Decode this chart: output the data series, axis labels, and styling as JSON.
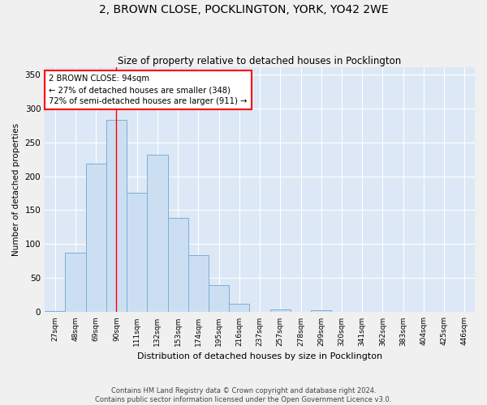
{
  "title": "2, BROWN CLOSE, POCKLINGTON, YORK, YO42 2WE",
  "subtitle": "Size of property relative to detached houses in Pocklington",
  "xlabel": "Distribution of detached houses by size in Pocklington",
  "ylabel": "Number of detached properties",
  "bar_color": "#ccdff2",
  "bar_edge_color": "#7bafd4",
  "background_color": "#dce8f5",
  "grid_color": "#ffffff",
  "categories": [
    "27sqm",
    "48sqm",
    "69sqm",
    "90sqm",
    "111sqm",
    "132sqm",
    "153sqm",
    "174sqm",
    "195sqm",
    "216sqm",
    "237sqm",
    "257sqm",
    "278sqm",
    "299sqm",
    "320sqm",
    "341sqm",
    "362sqm",
    "383sqm",
    "404sqm",
    "425sqm",
    "446sqm"
  ],
  "values": [
    2,
    87,
    219,
    283,
    175,
    232,
    139,
    84,
    40,
    12,
    0,
    4,
    0,
    3,
    0,
    0,
    0,
    0,
    0,
    0,
    0
  ],
  "ylim": [
    0,
    360
  ],
  "yticks": [
    0,
    50,
    100,
    150,
    200,
    250,
    300,
    350
  ],
  "vline_x_index": 3,
  "property_label": "2 BROWN CLOSE: 94sqm",
  "annotation_line1": "← 27% of detached houses are smaller (348)",
  "annotation_line2": "72% of semi-detached houses are larger (911) →",
  "footnote1": "Contains HM Land Registry data © Crown copyright and database right 2024.",
  "footnote2": "Contains public sector information licensed under the Open Government Licence v3.0."
}
